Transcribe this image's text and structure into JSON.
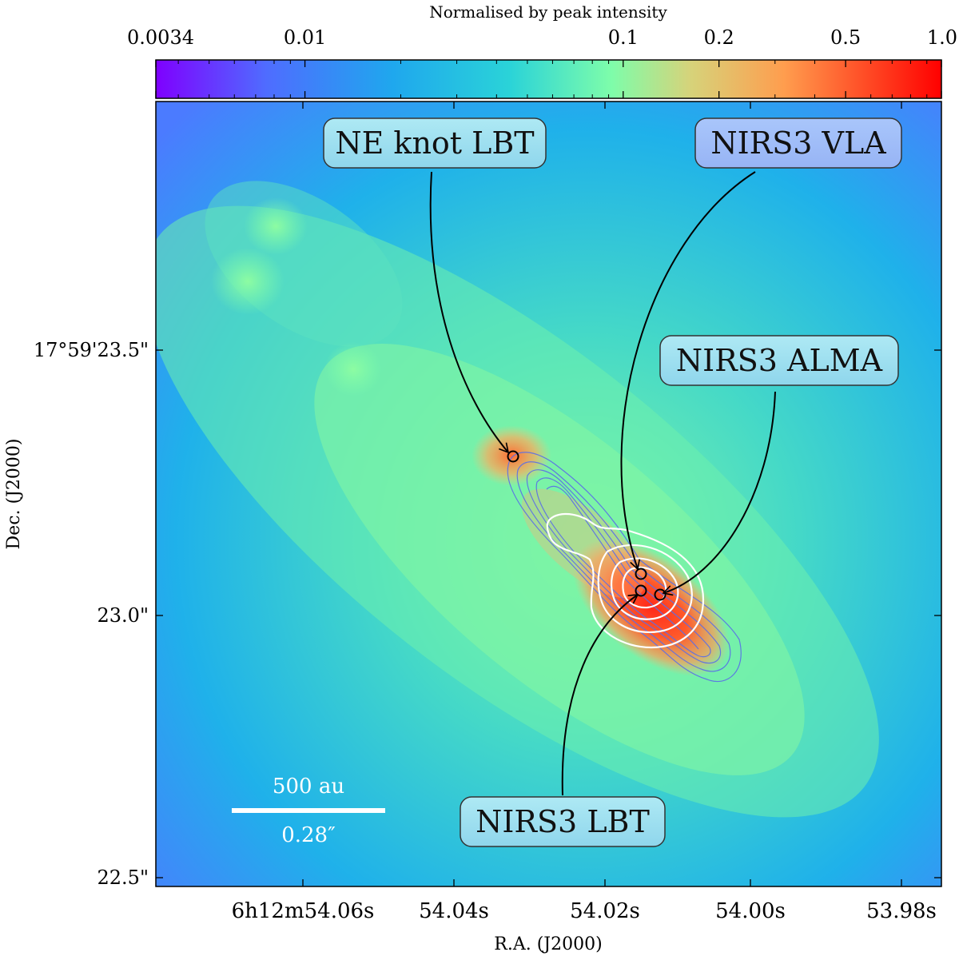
{
  "chart_data": {
    "type": "heatmap",
    "colorbar": {
      "label": "Normalised by peak intensity",
      "ticks": [
        "0.0034",
        "0.01",
        "0.1",
        "0.2",
        "0.5",
        "1.0"
      ],
      "tick_values": [
        0.0034,
        0.01,
        0.1,
        0.2,
        0.5,
        1.0
      ],
      "scale": "log",
      "range": [
        0.0034,
        1.0
      ],
      "colormap": [
        "#7f00ff",
        "#4f6cff",
        "#1fa7ee",
        "#2ad3d8",
        "#7efdaa",
        "#d6d37a",
        "#ff9d4e",
        "#ff0000"
      ]
    },
    "xlabel": "R.A. (J2000)",
    "ylabel": "Dec. (J2000)",
    "x_ticks": [
      {
        "value": 54.06,
        "label": "6h12m54.06s"
      },
      {
        "value": 54.04,
        "label": "54.04s"
      },
      {
        "value": 54.02,
        "label": "54.02s"
      },
      {
        "value": 54.0,
        "label": "54.00s"
      },
      {
        "value": 53.98,
        "label": "53.98s"
      }
    ],
    "y_ticks": [
      {
        "value": 23.5,
        "label": "17°59'23.5\""
      },
      {
        "value": 23.0,
        "label": "23.0\""
      },
      {
        "value": 22.5,
        "label": "22.5\""
      }
    ],
    "annotations": [
      {
        "label": "NE knot LBT",
        "ra": 54.033,
        "dec": 23.3
      },
      {
        "label": "NIRS3 VLA",
        "ra": 54.0155,
        "dec": 23.075
      },
      {
        "label": "NIRS3 ALMA",
        "ra": 54.012,
        "dec": 23.04
      },
      {
        "label": "NIRS3 LBT",
        "ra": 54.0155,
        "dec": 23.047
      }
    ],
    "scalebar": {
      "top": "500 au",
      "bottom": "0.28″"
    },
    "contours": {
      "white": "white contours around NIRS3",
      "blue": "blue contours along NE–SW axis"
    }
  }
}
